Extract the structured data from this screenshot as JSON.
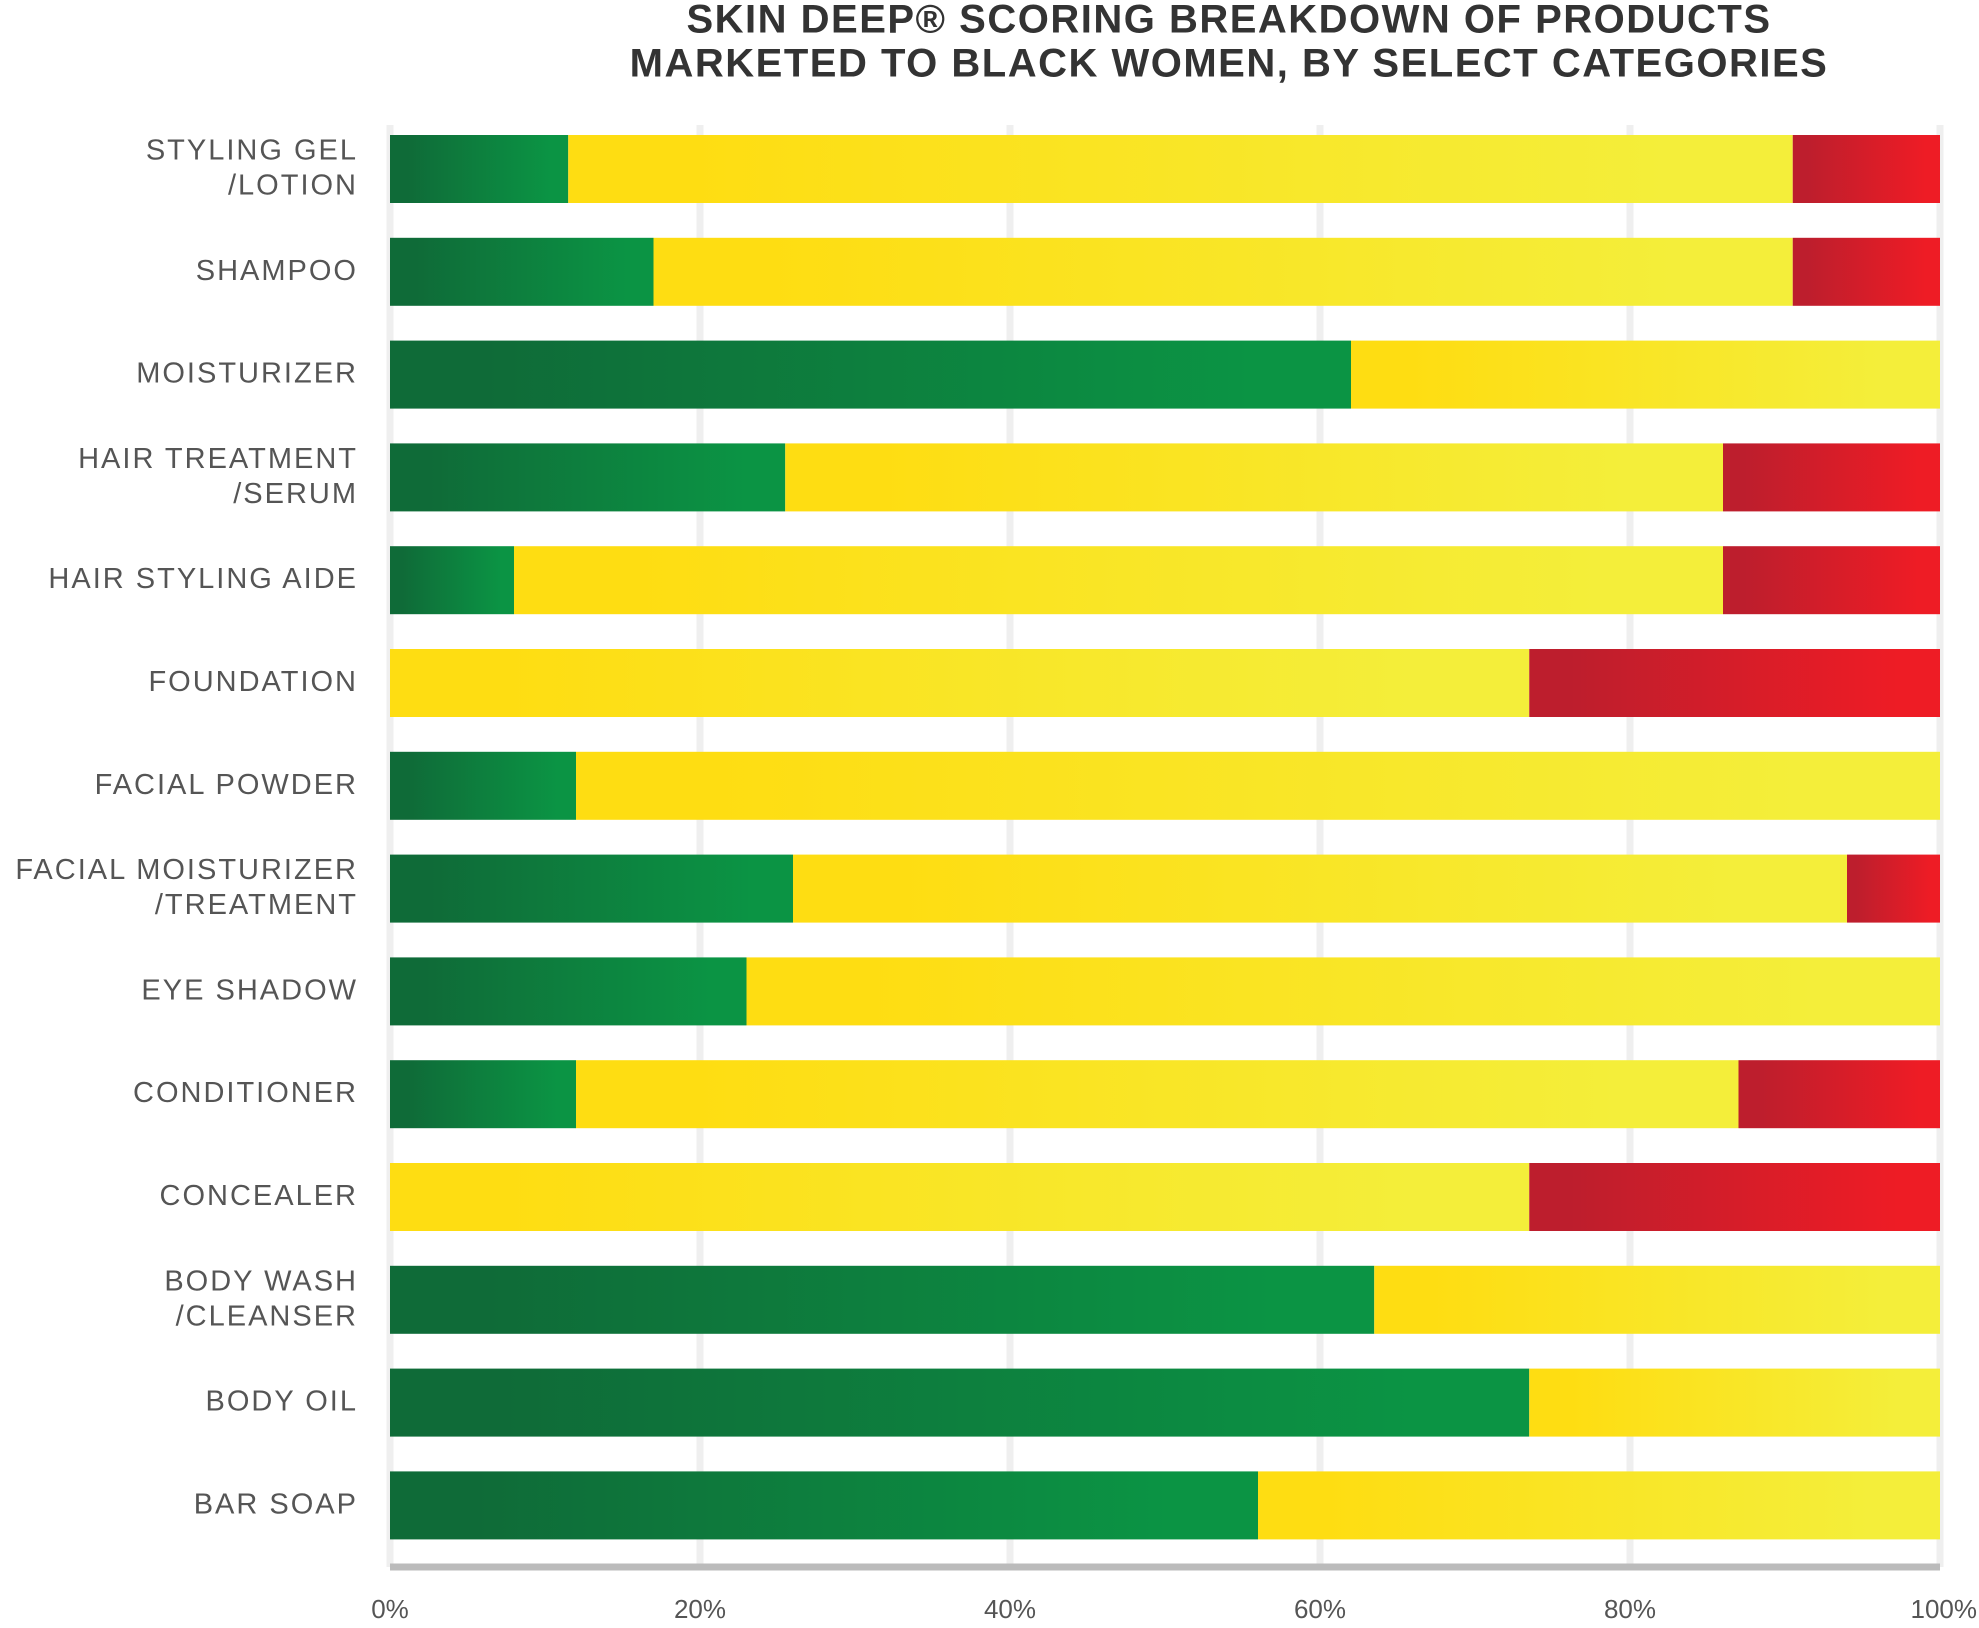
{
  "chart_data": {
    "type": "stacked_barh",
    "title": [
      "SKIN DEEP® SCORING BREAKDOWN OF PRODUCTS",
      "MARKETED TO BLACK WOMEN, BY SELECT CATEGORIES"
    ],
    "categories": [
      [
        "STYLING GEL",
        "/LOTION"
      ],
      [
        "SHAMPOO"
      ],
      [
        "MOISTURIZER"
      ],
      [
        "HAIR TREATMENT",
        "/SERUM"
      ],
      [
        "HAIR STYLING AIDE"
      ],
      [
        "FOUNDATION"
      ],
      [
        "FACIAL POWDER"
      ],
      [
        "FACIAL MOISTURIZER",
        "/TREATMENT"
      ],
      [
        "EYE SHADOW"
      ],
      [
        "CONDITIONER"
      ],
      [
        "CONCEALER"
      ],
      [
        "BODY WASH",
        "/CLEANSER"
      ],
      [
        "BODY OIL"
      ],
      [
        "BAR SOAP"
      ]
    ],
    "series": [
      {
        "color": "#0b9444",
        "gradient_from": "#0f6b38",
        "values": [
          11.5,
          17,
          62,
          25.5,
          8,
          0,
          12,
          26,
          23,
          12,
          0,
          63.5,
          73.5,
          56
        ]
      },
      {
        "color": "#f4ee3a",
        "gradient_from": "#fedd12",
        "values": [
          79,
          73.5,
          38,
          60.5,
          78,
          73.5,
          88,
          68,
          77,
          75,
          73.5,
          36.5,
          26.5,
          44
        ]
      },
      {
        "color": "#ee1c25",
        "gradient_from": "#bd1e2d",
        "values": [
          9.5,
          9.5,
          0,
          14,
          14,
          26.5,
          0,
          6,
          0,
          13,
          26.5,
          0,
          0,
          0
        ]
      }
    ],
    "xlim": [
      0,
      100
    ],
    "xticks": [
      {
        "value": 0,
        "label": "0%"
      },
      {
        "value": 20,
        "label": "20%"
      },
      {
        "value": 40,
        "label": "40%"
      },
      {
        "value": 60,
        "label": "60%"
      },
      {
        "value": 80,
        "label": "80%"
      },
      {
        "value": 100,
        "label": "100%"
      }
    ],
    "grid": true
  }
}
